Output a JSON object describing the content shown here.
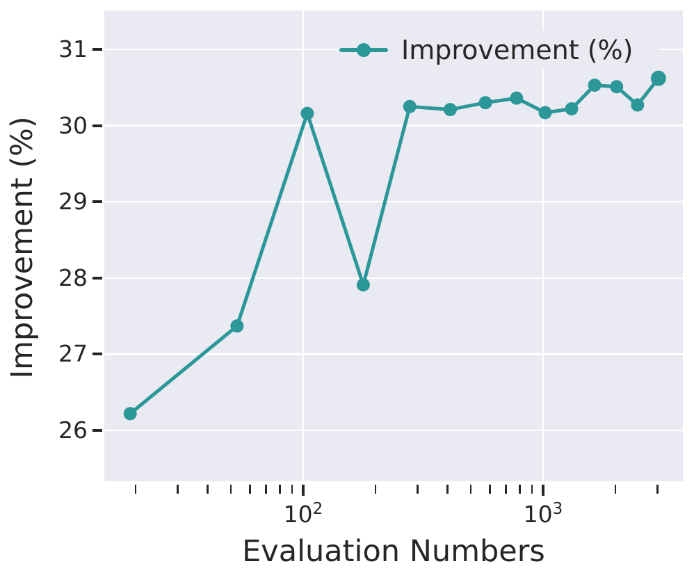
{
  "chart_data": {
    "type": "line",
    "title": "",
    "xlabel": "Evaluation Numbers",
    "ylabel": "Improvement (%)",
    "x_scale": "log",
    "xlim": [
      15.2,
      3900
    ],
    "ylim": [
      25.33,
      31.51
    ],
    "grid": true,
    "legend": {
      "label": "Improvement (%)",
      "position": "upper right",
      "marker": "circle"
    },
    "y_ticks": [
      26,
      27,
      28,
      29,
      30,
      31
    ],
    "x_major_ticks": [
      100,
      1000
    ],
    "x_minor_ticks": [
      20,
      30,
      40,
      50,
      60,
      70,
      80,
      90,
      200,
      300,
      400,
      500,
      600,
      700,
      800,
      900,
      2000,
      3000
    ],
    "series": [
      {
        "name": "Improvement (%)",
        "x": [
          19,
          53,
          104,
          178,
          278,
          410,
          575,
          775,
          1020,
          1315,
          1640,
          2025,
          2475,
          3025
        ],
        "y": [
          26.22,
          27.37,
          30.16,
          27.91,
          30.25,
          30.21,
          30.3,
          30.36,
          30.17,
          30.22,
          30.53,
          30.51,
          30.27,
          30.62
        ]
      }
    ],
    "colors": {
      "line": "#2B9799",
      "plot_bg": "#EAEAF2",
      "grid": "#FFFFFF",
      "text": "#262626",
      "tick": "#262626",
      "figure_bg": "#FFFFFF"
    }
  }
}
